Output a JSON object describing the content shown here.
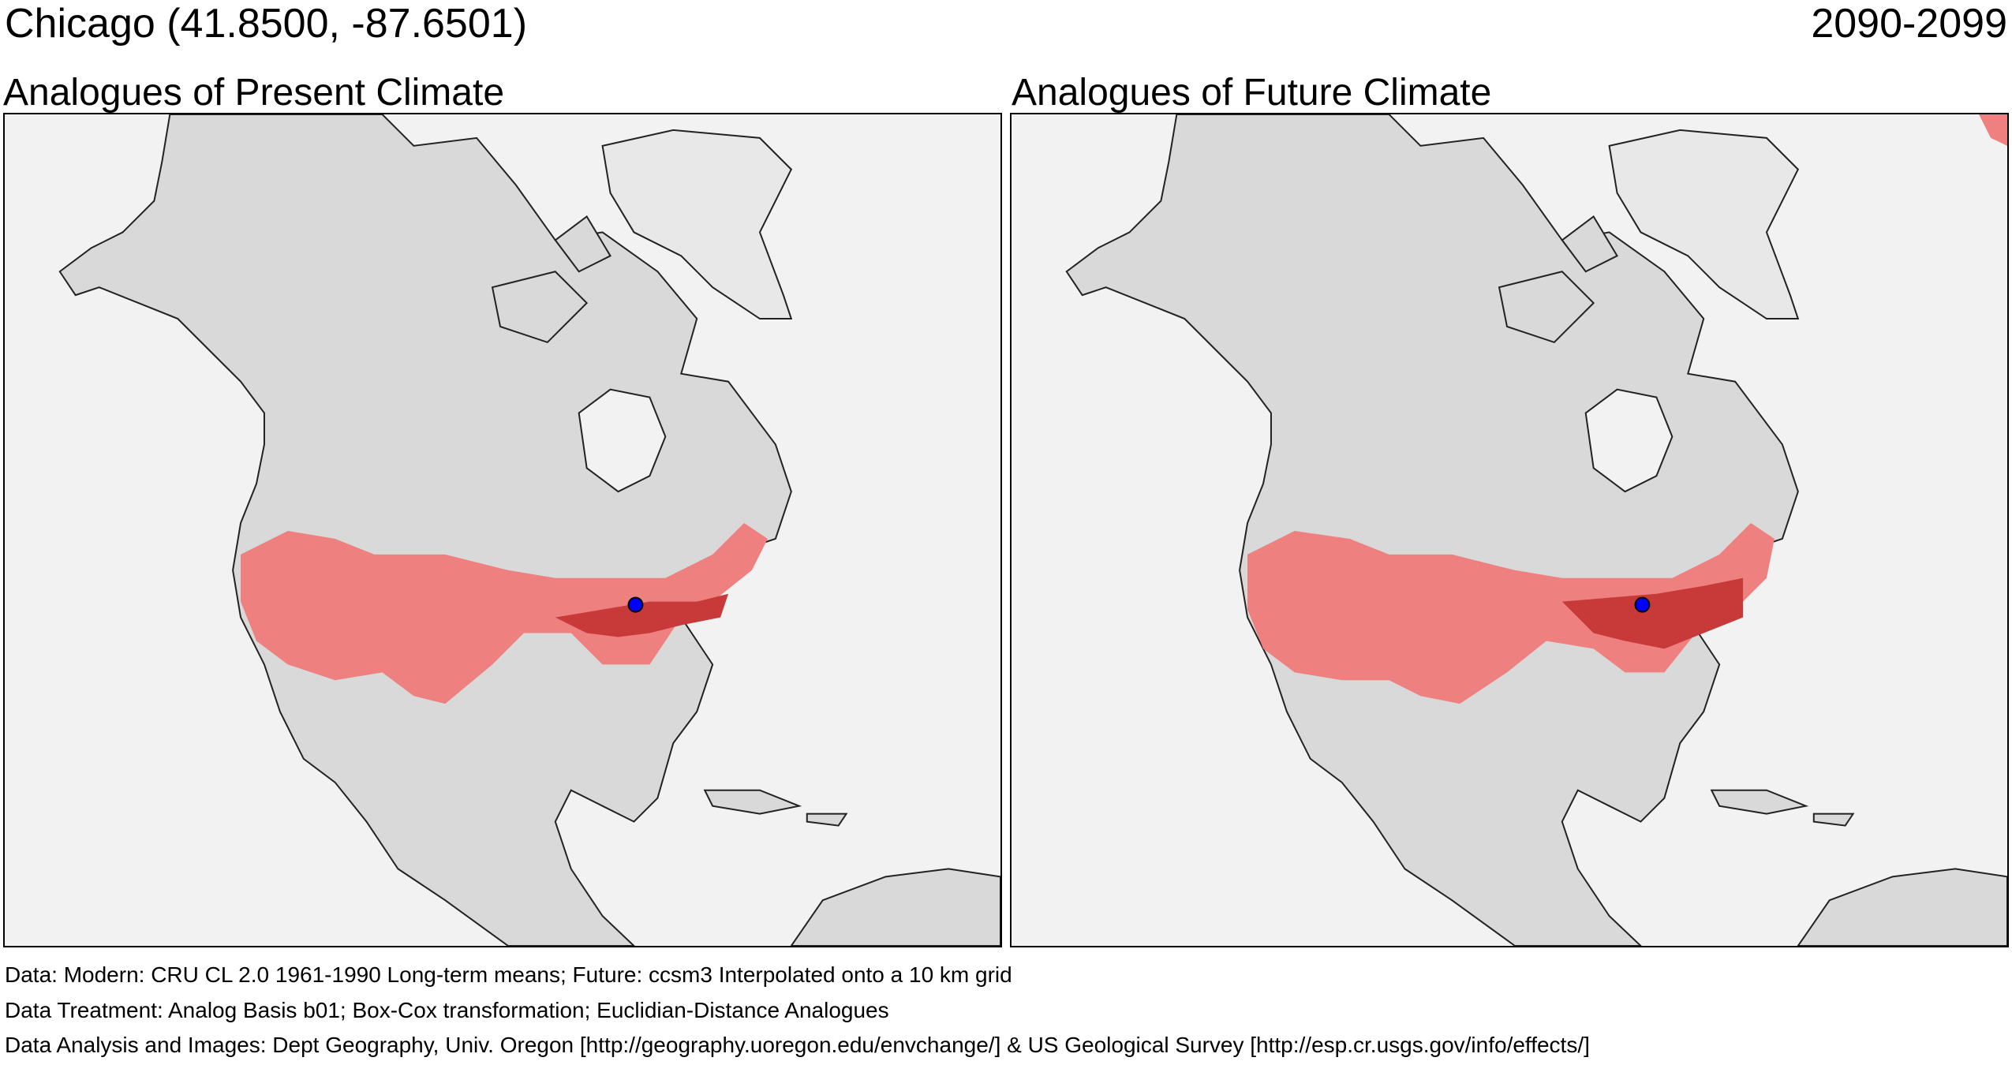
{
  "header": {
    "location": "Chicago  (41.8500, -87.6501)",
    "period": "2090-2099"
  },
  "panels": [
    {
      "title": "Analogues of Present Climate"
    },
    {
      "title": "Analogues of Future Climate"
    }
  ],
  "footer": {
    "data": "Data:  Modern: CRU CL 2.0 1961-1990 Long-term means; Future: ccsm3 Interpolated onto a 10 km grid",
    "treatment": "Data Treatment:  Analog Basis b01; Box-Cox transformation; Euclidian-Distance Analogues",
    "analysis": "Data Analysis and Images:  Dept Geography, Univ. Oregon [http://geography.uoregon.edu/envchange/] & US Geological Survey [http://esp.cr.usgs.gov/info/effects/]"
  },
  "colors": {
    "ocean": "#f2f2f2",
    "land": "#d9d9d9",
    "analog_light": "#ee8080",
    "analog_dark": "#c83a3a",
    "site_marker": "#0000ff"
  }
}
